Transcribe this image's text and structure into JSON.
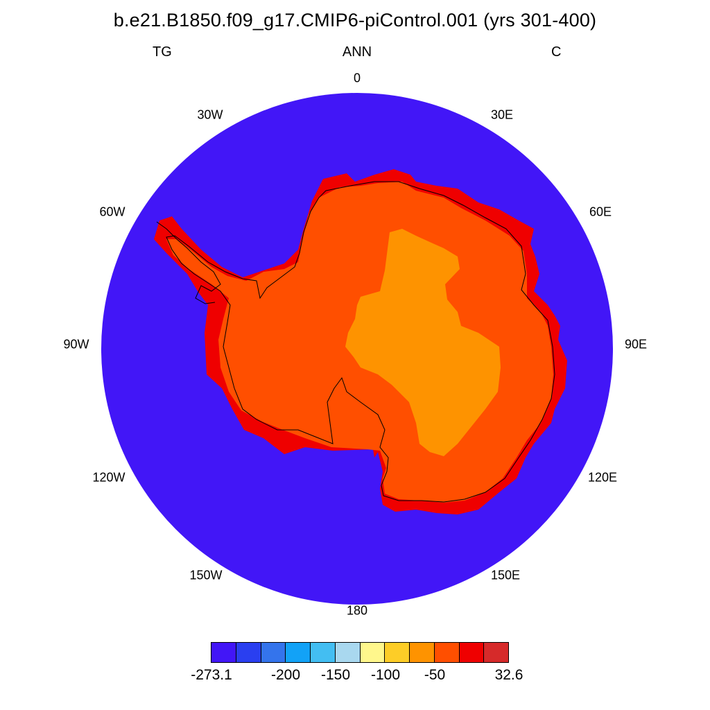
{
  "title": "b.e21.B1850.f09_g17.CMIP6-piControl.001 (yrs 301-400)",
  "left_label": "TG",
  "center_label": "ANN",
  "right_label": "C",
  "longitude_labels": {
    "deg0": "0",
    "deg30e": "30E",
    "deg60e": "60E",
    "deg90e": "90E",
    "deg120e": "120E",
    "deg150e": "150E",
    "deg180": "180",
    "deg150w": "150W",
    "deg120w": "120W",
    "deg90w": "90W",
    "deg60w": "60W",
    "deg30w": "30W"
  },
  "colorbar": {
    "colors": [
      "#4216f7",
      "#2a3ff0",
      "#3474ec",
      "#12a2f7",
      "#43bef2",
      "#a9d8ef",
      "#fff78c",
      "#fdcd27",
      "#fe9300",
      "#ff4f00",
      "#ef0000",
      "#d62a2a"
    ],
    "labels": {
      "min": "-273.1",
      "l200": "-200",
      "l150": "-150",
      "l100": "-100",
      "l50": "-50",
      "max": "32.6"
    }
  },
  "map": {
    "ocean_color": "#4216f7",
    "coast_color": "#ef0000",
    "ice_color": "#ff4f00",
    "plateau_color": "#fe9300",
    "outline_color": "#000000"
  }
}
